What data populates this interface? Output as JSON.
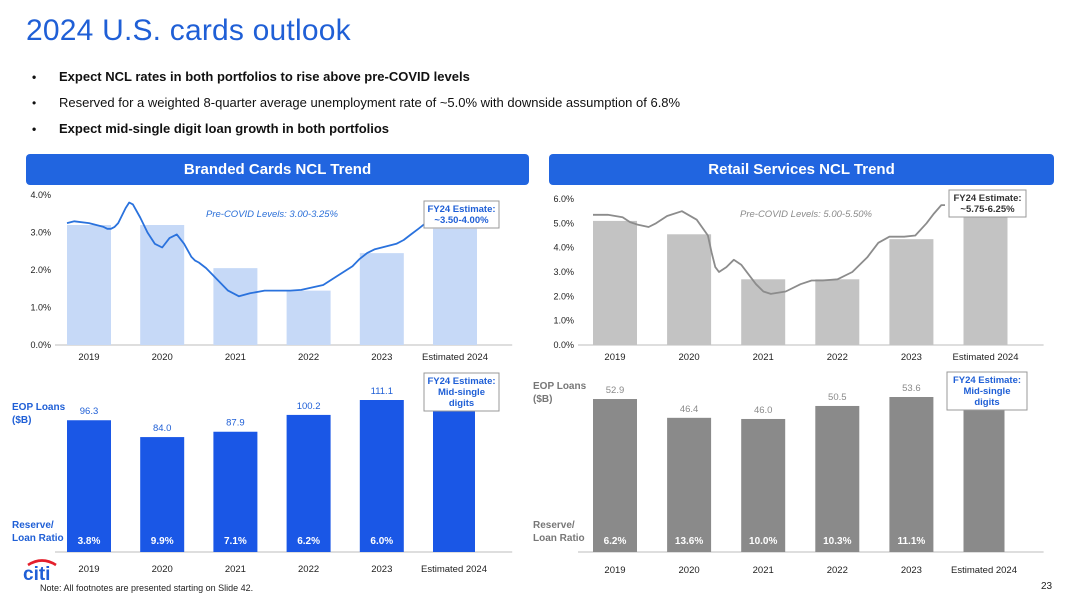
{
  "page": {
    "title": "2024 U.S. cards outlook",
    "bullets": [
      {
        "text": "Expect NCL rates in both portfolios to rise above pre-COVID levels",
        "bold": true
      },
      {
        "text": "Reserved for a weighted 8-quarter average unemployment rate of ~5.0% with downside assumption of 6.8%",
        "bold": false
      },
      {
        "text": "Expect mid-single digit loan growth in both portfolios",
        "bold": true
      }
    ],
    "footnote": "Note:  All footnotes are presented starting on Slide 42.",
    "page_number": "23",
    "logo_text": "citi"
  },
  "colors": {
    "brand": "#1f5fd6",
    "header": "#2165e0",
    "branded_ncl_bar": "#c6d9f7",
    "branded_loan_bar": "#1a57e6",
    "branded_line": "#2a72dd",
    "retail_ncl_bar": "#c3c3c3",
    "retail_loan_bar": "#8a8a8a",
    "retail_line": "#8c8c8c"
  },
  "chart_data": [
    {
      "type": "bar",
      "panel": "branded",
      "kind": "ncl",
      "title": "Branded Cards NCL Trend",
      "categories": [
        "2019",
        "2020",
        "2021",
        "2022",
        "2023",
        "Estimated 2024"
      ],
      "values": [
        3.2,
        3.2,
        2.05,
        1.45,
        2.45,
        3.1
      ],
      "ylim": [
        0,
        4.0
      ],
      "yticks": [
        "0.0%",
        "1.0%",
        "2.0%",
        "3.0%",
        "4.0%"
      ],
      "line_series": {
        "x": [
          0.0,
          0.1,
          0.3,
          0.5,
          0.55,
          0.6,
          0.65,
          0.7,
          0.75,
          0.8,
          0.85,
          0.9,
          1.0,
          1.1,
          1.2,
          1.3,
          1.4,
          1.5,
          1.6,
          1.7,
          1.75,
          1.8,
          1.9,
          2.0,
          2.1,
          2.2,
          2.3,
          2.35,
          2.5,
          2.7,
          2.9,
          3.05,
          3.2,
          3.5,
          3.7,
          3.9,
          4.0,
          4.1,
          4.2,
          4.3,
          4.4,
          4.5,
          4.6,
          4.7,
          4.8,
          4.9,
          4.95
        ],
        "y": [
          3.25,
          3.3,
          3.25,
          3.15,
          3.1,
          3.1,
          3.15,
          3.25,
          3.45,
          3.65,
          3.8,
          3.75,
          3.4,
          3.0,
          2.7,
          2.6,
          2.85,
          2.95,
          2.7,
          2.35,
          2.25,
          2.2,
          2.05,
          1.85,
          1.65,
          1.45,
          1.35,
          1.3,
          1.38,
          1.45,
          1.45,
          1.45,
          1.47,
          1.6,
          1.85,
          2.1,
          2.3,
          2.45,
          2.55,
          2.6,
          2.65,
          2.7,
          2.8,
          2.95,
          3.1,
          3.25,
          3.3
        ]
      },
      "annotation": "Pre-COVID Levels: 3.00-3.25%",
      "callout": [
        "FY24 Estimate:",
        "~3.50-4.00%"
      ]
    },
    {
      "type": "bar",
      "panel": "retail",
      "kind": "ncl",
      "title": "Retail Services NCL Trend",
      "categories": [
        "2019",
        "2020",
        "2021",
        "2022",
        "2023",
        "Estimated 2024"
      ],
      "values": [
        5.1,
        4.55,
        2.7,
        2.7,
        4.35,
        5.3
      ],
      "ylim": [
        0,
        6.0
      ],
      "yticks": [
        "0.0%",
        "1.0%",
        "2.0%",
        "3.0%",
        "4.0%",
        "5.0%",
        "6.0%"
      ],
      "line_series": {
        "x": [
          0.0,
          0.2,
          0.4,
          0.5,
          0.6,
          0.75,
          0.85,
          1.0,
          1.2,
          1.4,
          1.55,
          1.6,
          1.65,
          1.7,
          1.8,
          1.9,
          2.0,
          2.1,
          2.2,
          2.3,
          2.4,
          2.6,
          2.8,
          2.95,
          3.1,
          3.3,
          3.5,
          3.7,
          3.85,
          4.0,
          4.1,
          4.2,
          4.35,
          4.5,
          4.6,
          4.7,
          4.75
        ],
        "y": [
          5.35,
          5.35,
          5.25,
          5.05,
          4.95,
          4.85,
          5.0,
          5.3,
          5.5,
          5.15,
          4.5,
          3.8,
          3.2,
          3.0,
          3.2,
          3.5,
          3.3,
          2.9,
          2.5,
          2.2,
          2.1,
          2.2,
          2.5,
          2.65,
          2.65,
          2.7,
          3.0,
          3.6,
          4.2,
          4.45,
          4.45,
          4.45,
          4.5,
          5.0,
          5.4,
          5.75,
          5.75
        ]
      },
      "annotation": "Pre-COVID Levels: 5.00-5.50%",
      "callout": [
        "FY24 Estimate:",
        "~5.75-6.25%"
      ]
    },
    {
      "type": "bar",
      "panel": "branded",
      "kind": "loans",
      "categories": [
        "2019",
        "2020",
        "2021",
        "2022",
        "2023",
        "Estimated 2024"
      ],
      "values": [
        96.3,
        84.0,
        87.9,
        100.2,
        111.1,
        113.5
      ],
      "labels": [
        "96.3",
        "84.0",
        "87.9",
        "100.2",
        "111.1",
        ""
      ],
      "ylim": [
        0,
        111.1
      ],
      "row_labels": [
        "EOP Loans",
        "($B)"
      ],
      "reserve_label": [
        "Reserve/",
        "Loan Ratio"
      ],
      "reserve_ratios": [
        "3.8%",
        "9.9%",
        "7.1%",
        "6.2%",
        "6.0%",
        ""
      ],
      "callout": [
        "FY24 Estimate:",
        "Mid-single",
        "digits"
      ]
    },
    {
      "type": "bar",
      "panel": "retail",
      "kind": "loans",
      "categories": [
        "2019",
        "2020",
        "2021",
        "2022",
        "2023",
        "Estimated 2024"
      ],
      "values": [
        52.9,
        46.4,
        46.0,
        50.5,
        53.6,
        54.5
      ],
      "labels": [
        "52.9",
        "46.4",
        "46.0",
        "50.5",
        "53.6",
        ""
      ],
      "ylim": [
        0,
        53.6
      ],
      "row_labels": [
        "EOP Loans",
        "($B)"
      ],
      "reserve_label": [
        "Reserve/",
        "Loan Ratio"
      ],
      "reserve_ratios": [
        "6.2%",
        "13.6%",
        "10.0%",
        "10.3%",
        "11.1%",
        ""
      ],
      "callout": [
        "FY24 Estimate:",
        "Mid-single",
        "digits"
      ]
    }
  ]
}
